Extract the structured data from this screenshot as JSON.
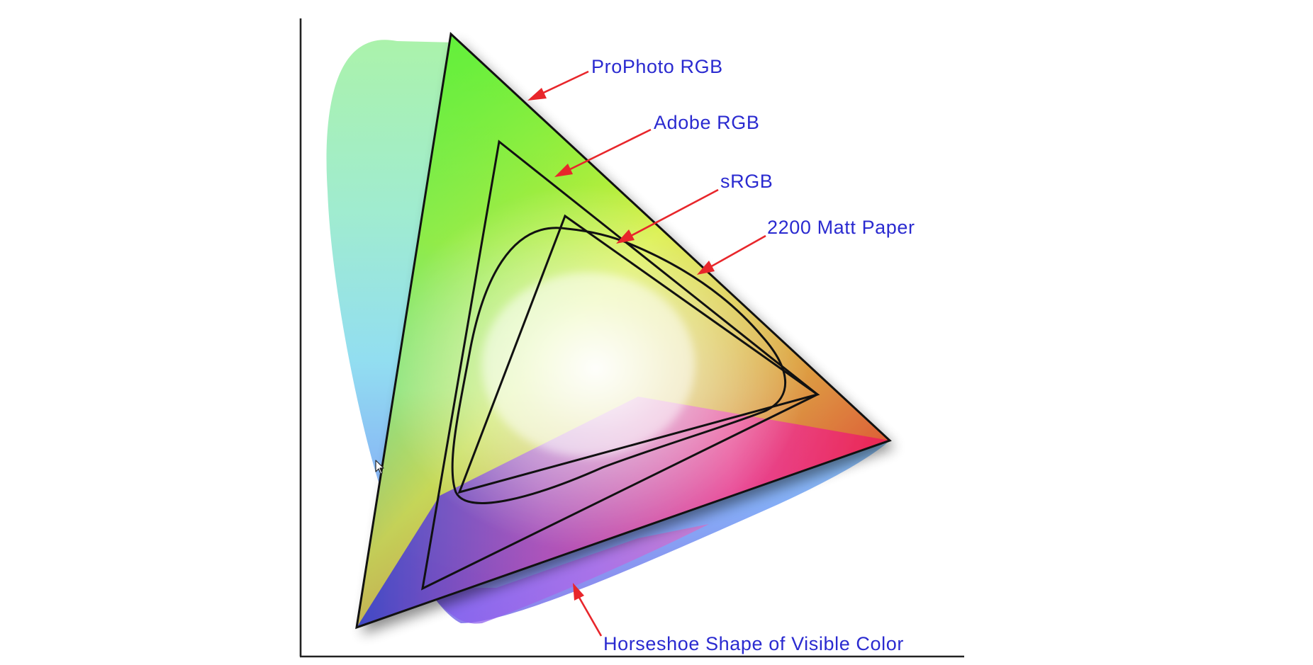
{
  "colors": {
    "label_text": "#2a2ad0",
    "arrow": "#e8262b",
    "outline": "#111111",
    "axis": "#222222",
    "background": "#ffffff"
  },
  "labels": {
    "prophoto": "ProPhoto RGB",
    "adobe": "Adobe RGB",
    "srgb": "sRGB",
    "matt_paper": "2200 Matt Paper",
    "horseshoe": "Horseshoe Shape of Visible Color"
  },
  "icons": {
    "cursor": "mouse-pointer-icon"
  }
}
